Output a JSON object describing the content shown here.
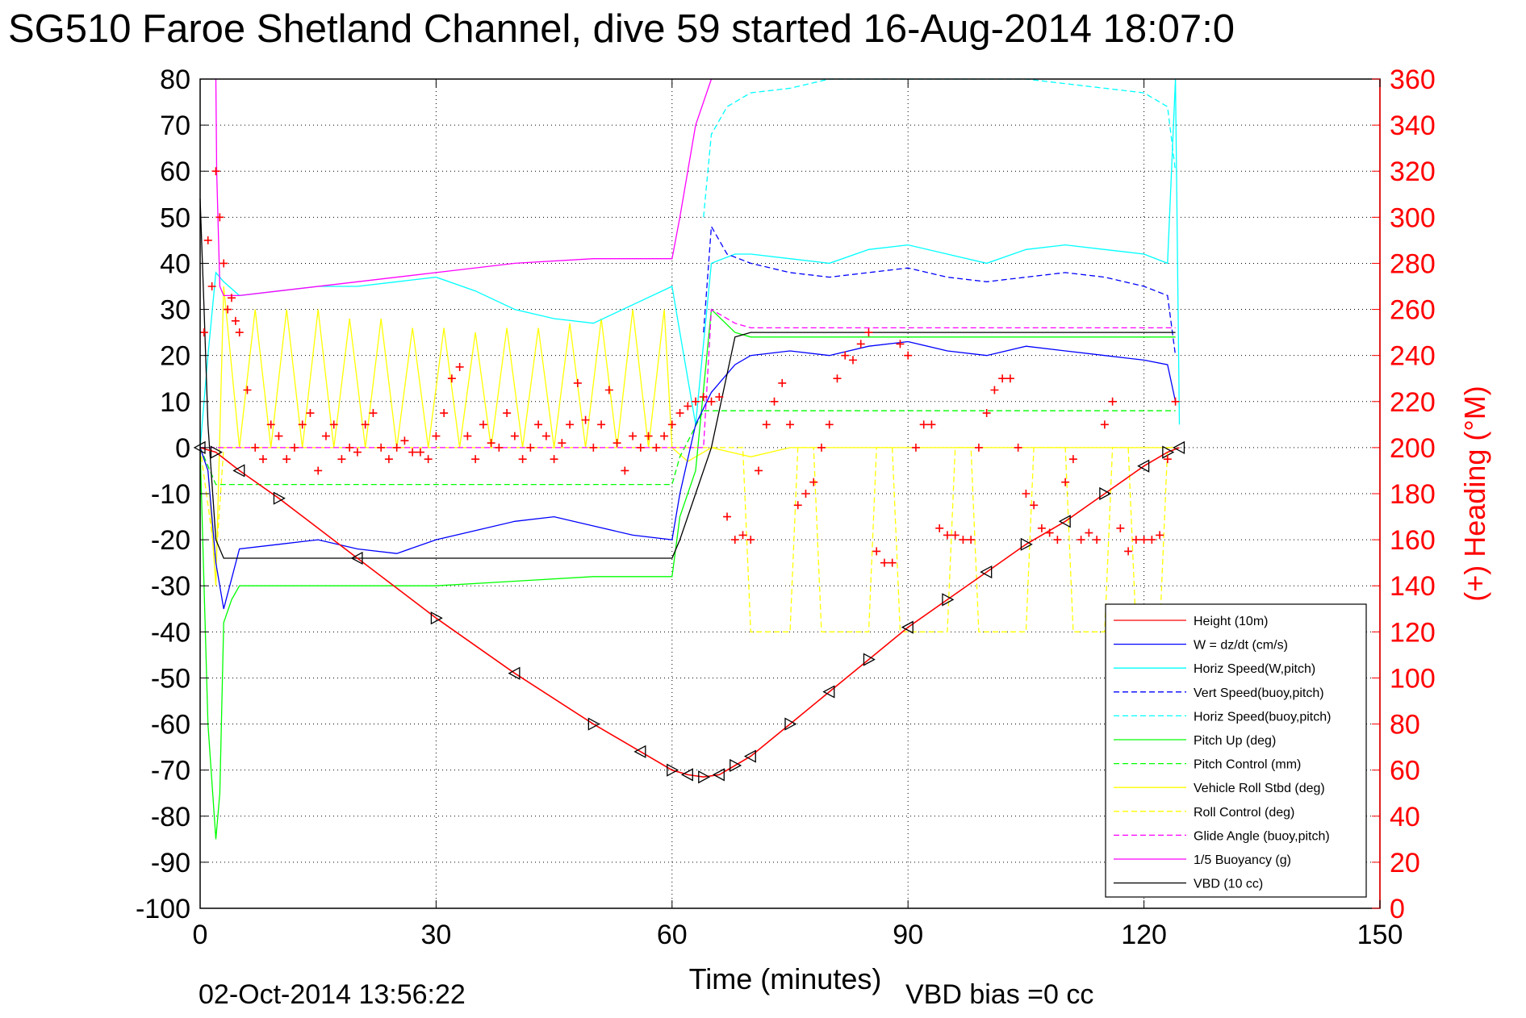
{
  "title": "SG510 Faroe Shetland Channel, dive 59 started 16-Aug-2014 18:07:0",
  "footer_date": "02-Oct-2014 13:56:22",
  "footer_note": "VBD bias =0 cc",
  "chart_data": {
    "type": "line",
    "xlabel": "Time (minutes)",
    "ylabel": "",
    "y2label": "(+) Heading (°M)",
    "xlim": [
      0,
      150
    ],
    "ylim": [
      -100,
      80
    ],
    "y2lim": [
      0,
      360
    ],
    "xticks": [
      "0",
      "30",
      "60",
      "90",
      "120",
      "150"
    ],
    "yticks": [
      "80",
      "70",
      "60",
      "50",
      "40",
      "30",
      "20",
      "10",
      "0",
      "-10",
      "-20",
      "-30",
      "-40",
      "-50",
      "-60",
      "-70",
      "-80",
      "-90",
      "-100"
    ],
    "y2ticks": [
      "360",
      "340",
      "320",
      "300",
      "280",
      "260",
      "240",
      "220",
      "200",
      "180",
      "160",
      "140",
      "120",
      "100",
      "80",
      "60",
      "40",
      "20",
      "0"
    ],
    "grid": true,
    "legend_position": "bottom-right",
    "colors": {
      "height": "#ff0000",
      "w": "#0000ff",
      "horiz_speed": "#00ffff",
      "pitch": "#00ff00",
      "roll": "#ffff00",
      "glide": "#ff00ff",
      "buoy": "#ff00ff",
      "vbd": "#000000",
      "heading": "#ff0000"
    },
    "series": [
      {
        "key": "height",
        "name": "Height (10m)",
        "style": "solid",
        "color": "#ff0000",
        "x": [
          0,
          2,
          5,
          10,
          20,
          30,
          40,
          50,
          56,
          60,
          62,
          64,
          66,
          68,
          70,
          75,
          80,
          85,
          90,
          95,
          100,
          105,
          110,
          115,
          120,
          123,
          124.5
        ],
        "y": [
          0,
          -1,
          -5,
          -11,
          -24,
          -37,
          -49,
          -60,
          -66,
          -70,
          -71,
          -71.5,
          -71,
          -69,
          -67,
          -60,
          -53,
          -46,
          -39,
          -33,
          -27,
          -21,
          -16,
          -10,
          -4,
          -1,
          0
        ]
      },
      {
        "key": "w",
        "name": "W = dz/dt (cm/s)",
        "style": "solid",
        "color": "#0000ff",
        "x": [
          0,
          1,
          2,
          3,
          5,
          10,
          15,
          20,
          25,
          30,
          35,
          40,
          45,
          50,
          55,
          60,
          61,
          63,
          65,
          68,
          70,
          75,
          80,
          85,
          90,
          95,
          100,
          105,
          110,
          115,
          120,
          123,
          124
        ],
        "y": [
          0,
          -5,
          -25,
          -35,
          -22,
          -21,
          -20,
          -22,
          -23,
          -20,
          -18,
          -16,
          -15,
          -17,
          -19,
          -20,
          -10,
          5,
          12,
          18,
          20,
          21,
          20,
          22,
          23,
          21,
          20,
          22,
          21,
          20,
          19,
          18,
          10
        ]
      },
      {
        "key": "horiz_speed",
        "name": "Horiz Speed(W,pitch)",
        "style": "solid",
        "color": "#00ffff",
        "x": [
          0,
          1,
          2,
          3,
          5,
          10,
          15,
          20,
          25,
          30,
          35,
          40,
          45,
          50,
          55,
          60,
          61,
          63,
          65,
          68,
          70,
          75,
          80,
          85,
          90,
          95,
          100,
          105,
          110,
          115,
          120,
          123,
          124,
          124.5
        ],
        "y": [
          0,
          20,
          38,
          36,
          33,
          34,
          35,
          35,
          36,
          37,
          34,
          30,
          28,
          27,
          31,
          35,
          25,
          5,
          40,
          42,
          42,
          41,
          40,
          43,
          44,
          42,
          40,
          43,
          44,
          43,
          42,
          40,
          80,
          5
        ]
      },
      {
        "key": "vert_speed",
        "name": "Vert Speed(buoy,pitch)",
        "style": "dashed",
        "color": "#0000ff",
        "x": [
          64,
          65,
          67,
          70,
          75,
          80,
          85,
          90,
          95,
          100,
          105,
          110,
          115,
          120,
          123,
          124
        ],
        "y": [
          25,
          48,
          42,
          40,
          38,
          37,
          38,
          39,
          37,
          36,
          37,
          38,
          37,
          35,
          33,
          20
        ]
      },
      {
        "key": "horiz_speed_buoy",
        "name": "Horiz Speed(buoy,pitch)",
        "style": "dashed",
        "color": "#00ffff",
        "x": [
          64,
          65,
          67,
          70,
          75,
          80,
          85,
          90,
          95,
          100,
          105,
          110,
          115,
          120,
          123,
          124
        ],
        "y": [
          50,
          68,
          74,
          77,
          78,
          80,
          80,
          80,
          80,
          80,
          80,
          79,
          78,
          77,
          74,
          60
        ]
      },
      {
        "key": "pitch_up",
        "name": "Pitch Up (deg)",
        "style": "solid",
        "color": "#00ff00",
        "x": [
          0,
          1,
          2,
          2.5,
          3,
          4,
          5,
          10,
          20,
          30,
          40,
          50,
          60,
          61,
          63,
          65,
          68,
          70,
          80,
          90,
          100,
          110,
          120,
          124
        ],
        "y": [
          0,
          -60,
          -85,
          -75,
          -38,
          -33,
          -30,
          -30,
          -30,
          -30,
          -29,
          -28,
          -28,
          -15,
          -5,
          30,
          25,
          24,
          24,
          24,
          24,
          24,
          24,
          24
        ]
      },
      {
        "key": "pitch_control",
        "name": "Pitch Control (mm)",
        "style": "dashed",
        "color": "#00ff00",
        "x": [
          0,
          2,
          3,
          60,
          61,
          64,
          124
        ],
        "y": [
          0,
          -8,
          -8,
          -8,
          -2,
          8,
          8
        ]
      },
      {
        "key": "vehicle_roll",
        "name": "Vehicle Roll Stbd (deg)",
        "style": "solid",
        "color": "#ffff00",
        "x": [
          0,
          1,
          2,
          3,
          5,
          7,
          9,
          11,
          13,
          15,
          17,
          19,
          21,
          23,
          25,
          27,
          29,
          31,
          33,
          35,
          37,
          39,
          41,
          43,
          45,
          47,
          49,
          51,
          53,
          55,
          57,
          59,
          60,
          62,
          65,
          70,
          75,
          80,
          85,
          90,
          95,
          100,
          105,
          110,
          115,
          120,
          124
        ],
        "y": [
          0,
          -5,
          -30,
          35,
          0,
          30,
          0,
          30,
          0,
          30,
          0,
          28,
          0,
          28,
          0,
          26,
          0,
          26,
          0,
          25,
          0,
          26,
          0,
          26,
          0,
          27,
          0,
          28,
          0,
          30,
          0,
          30,
          0,
          -3,
          0,
          -2,
          0,
          0,
          0,
          0,
          0,
          0,
          0,
          0,
          0,
          0,
          0
        ]
      },
      {
        "key": "roll_control",
        "name": "Roll Control (deg)",
        "style": "dashed",
        "color": "#ffff00",
        "x": [
          0,
          2,
          3,
          60,
          64,
          69,
          70,
          75,
          76,
          78,
          79,
          85,
          86,
          88,
          89,
          95,
          96,
          98,
          99,
          105,
          106,
          110,
          111,
          115,
          116,
          118,
          119,
          122,
          123,
          124
        ],
        "y": [
          0,
          -25,
          0,
          0,
          0,
          0,
          -40,
          -40,
          0,
          0,
          -40,
          -40,
          0,
          0,
          -40,
          -40,
          0,
          0,
          -40,
          -40,
          0,
          0,
          -40,
          -40,
          0,
          0,
          -40,
          -40,
          0,
          0
        ]
      },
      {
        "key": "glide_angle",
        "name": "Glide Angle (buoy,pitch)",
        "style": "dashed",
        "color": "#ff00ff",
        "x": [
          0,
          60,
          64,
          65,
          68,
          70,
          80,
          90,
          100,
          110,
          120,
          124
        ],
        "y": [
          0,
          0,
          0,
          30,
          27,
          26,
          26,
          26,
          26,
          26,
          26,
          26
        ]
      },
      {
        "key": "buoyancy",
        "name": "1/5 Buoyancy (g)",
        "style": "solid",
        "color": "#ff00ff",
        "x": [
          2,
          2.1,
          2.5,
          3,
          5,
          10,
          20,
          30,
          40,
          50,
          60,
          61,
          63,
          65
        ],
        "y": [
          80,
          60,
          35,
          33,
          33,
          34,
          36,
          38,
          40,
          41,
          41,
          50,
          70,
          80
        ]
      },
      {
        "key": "vbd",
        "name": "VBD (10 cc)",
        "style": "solid",
        "color": "#000000",
        "x": [
          0,
          0.5,
          1,
          2,
          3,
          10,
          20,
          30,
          40,
          50,
          60,
          61,
          63,
          65,
          68,
          70,
          80,
          90,
          100,
          110,
          120,
          124
        ],
        "y": [
          54,
          30,
          5,
          -20,
          -24,
          -24,
          -24,
          -24,
          -24,
          -24,
          -24,
          -20,
          -10,
          0,
          24,
          25,
          25,
          25,
          25,
          25,
          25,
          25
        ]
      },
      {
        "key": "heading",
        "name": "(+) Heading (°M)",
        "style": "markers",
        "marker": "+",
        "color": "#ff0000",
        "axis": "right",
        "x": [
          0.5,
          1,
          1.5,
          2,
          2.5,
          3,
          3.5,
          4,
          4.5,
          5,
          6,
          7,
          8,
          9,
          10,
          11,
          12,
          13,
          14,
          15,
          16,
          17,
          18,
          19,
          20,
          21,
          22,
          23,
          24,
          25,
          26,
          27,
          28,
          29,
          30,
          31,
          32,
          33,
          34,
          35,
          36,
          37,
          38,
          39,
          40,
          41,
          42,
          43,
          44,
          45,
          46,
          47,
          48,
          49,
          50,
          51,
          52,
          53,
          54,
          55,
          56,
          57,
          58,
          59,
          60,
          61,
          62,
          63,
          64,
          65,
          66,
          67,
          68,
          69,
          70,
          71,
          72,
          73,
          74,
          75,
          76,
          77,
          78,
          79,
          80,
          81,
          82,
          83,
          84,
          85,
          86,
          87,
          88,
          89,
          90,
          91,
          92,
          93,
          94,
          95,
          96,
          97,
          98,
          99,
          100,
          101,
          102,
          103,
          104,
          105,
          106,
          107,
          108,
          109,
          110,
          111,
          112,
          113,
          114,
          115,
          116,
          117,
          118,
          119,
          120,
          121,
          122,
          123,
          124
        ],
        "y": [
          250,
          290,
          270,
          320,
          300,
          280,
          260,
          265,
          255,
          250,
          225,
          200,
          195,
          210,
          205,
          195,
          200,
          210,
          215,
          190,
          205,
          210,
          195,
          200,
          198,
          210,
          215,
          200,
          195,
          200,
          203,
          198,
          198,
          195,
          205,
          215,
          230,
          235,
          205,
          195,
          210,
          202,
          200,
          215,
          205,
          195,
          200,
          210,
          205,
          195,
          202,
          210,
          228,
          212,
          200,
          210,
          225,
          202,
          190,
          205,
          200,
          205,
          200,
          205,
          210,
          215,
          218,
          220,
          222,
          220,
          222,
          170,
          160,
          162,
          160,
          190,
          210,
          220,
          228,
          210,
          175,
          180,
          185,
          200,
          210,
          230,
          240,
          238,
          245,
          250,
          155,
          150,
          150,
          245,
          240,
          200,
          210,
          210,
          165,
          162,
          162,
          160,
          160,
          200,
          215,
          225,
          230,
          230,
          200,
          180,
          175,
          165,
          163,
          160,
          185,
          195,
          160,
          163,
          160,
          210,
          220,
          165,
          155,
          160,
          160,
          160,
          162,
          195,
          220
        ]
      }
    ]
  }
}
